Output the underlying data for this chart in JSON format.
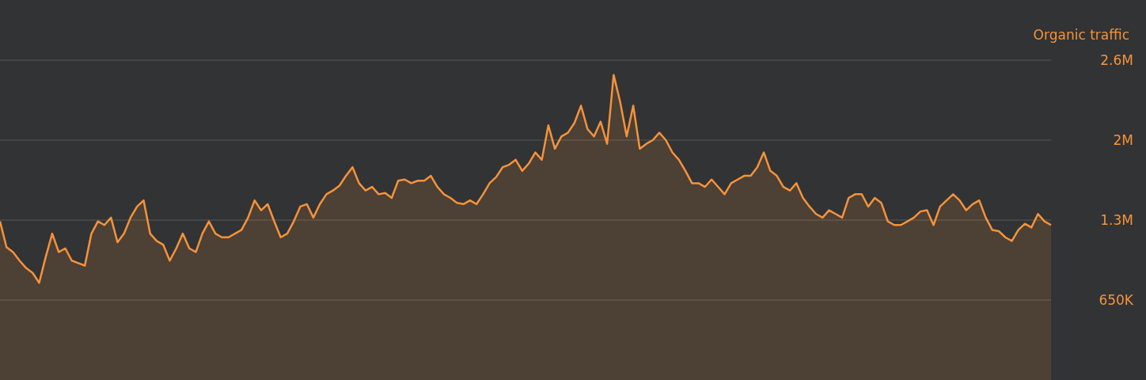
{
  "chart_data": {
    "type": "area",
    "ylabel": "Organic traffic",
    "categories": [
      null,
      null,
      null,
      null,
      null,
      null,
      null,
      null,
      null,
      null,
      null,
      null,
      null,
      null,
      null,
      null,
      null,
      null,
      null,
      null,
      null,
      null,
      null,
      null,
      null,
      null,
      null,
      null,
      null,
      null,
      null,
      null,
      null,
      null,
      null,
      null,
      null,
      null,
      null,
      null,
      null,
      null,
      null,
      null,
      null,
      null,
      null,
      null,
      null,
      null,
      null,
      null,
      null,
      null,
      null,
      null,
      null,
      null,
      null,
      null,
      null,
      null,
      null,
      null,
      null,
      null,
      null,
      null,
      null,
      null,
      null,
      null,
      null,
      null,
      null,
      null,
      null,
      null,
      null,
      null,
      null,
      null,
      null,
      null,
      null,
      null,
      null,
      null,
      null,
      null,
      null,
      null,
      null,
      null,
      null,
      null,
      null,
      null,
      null,
      null,
      null,
      null,
      null,
      null,
      null,
      null,
      null,
      null,
      null,
      null,
      null,
      null,
      null,
      null,
      null,
      null,
      null,
      null,
      null,
      null,
      null,
      null,
      null,
      null,
      null,
      null,
      null,
      null,
      null,
      null,
      null,
      null,
      null,
      null,
      null,
      null,
      null,
      null,
      null,
      null,
      null,
      null,
      null,
      null,
      null,
      null,
      null,
      null,
      null,
      null,
      null,
      null,
      null,
      null,
      null,
      null,
      null,
      null,
      null,
      null,
      null,
      null
    ],
    "series": [
      {
        "color": "#f5933a",
        "values": [
          1290000,
          1080000,
          1040000,
          970000,
          910000,
          870000,
          790000,
          1000000,
          1190000,
          1040000,
          1070000,
          970000,
          950000,
          930000,
          1190000,
          1290000,
          1260000,
          1320000,
          1120000,
          1190000,
          1320000,
          1410000,
          1460000,
          1190000,
          1130000,
          1100000,
          970000,
          1070000,
          1190000,
          1070000,
          1040000,
          1190000,
          1290000,
          1190000,
          1160000,
          1160000,
          1190000,
          1220000,
          1320000,
          1460000,
          1380000,
          1430000,
          1290000,
          1160000,
          1190000,
          1290000,
          1410000,
          1430000,
          1320000,
          1430000,
          1510000,
          1540000,
          1580000,
          1660000,
          1730000,
          1600000,
          1540000,
          1570000,
          1510000,
          1520000,
          1480000,
          1620000,
          1630000,
          1600000,
          1620000,
          1620000,
          1660000,
          1570000,
          1510000,
          1480000,
          1440000,
          1430000,
          1460000,
          1430000,
          1510000,
          1600000,
          1650000,
          1730000,
          1750000,
          1790000,
          1700000,
          1760000,
          1850000,
          1790000,
          2070000,
          1880000,
          1980000,
          2010000,
          2090000,
          2230000,
          2040000,
          1980000,
          2100000,
          1920000,
          2480000,
          2260000,
          1980000,
          2230000,
          1880000,
          1920000,
          1950000,
          2010000,
          1950000,
          1850000,
          1790000,
          1700000,
          1600000,
          1600000,
          1570000,
          1630000,
          1570000,
          1510000,
          1600000,
          1630000,
          1660000,
          1660000,
          1730000,
          1850000,
          1700000,
          1660000,
          1570000,
          1540000,
          1600000,
          1480000,
          1410000,
          1350000,
          1320000,
          1380000,
          1350000,
          1320000,
          1480000,
          1510000,
          1510000,
          1410000,
          1480000,
          1440000,
          1290000,
          1260000,
          1260000,
          1290000,
          1320000,
          1370000,
          1380000,
          1260000,
          1410000,
          1460000,
          1510000,
          1460000,
          1380000,
          1430000,
          1460000,
          1320000,
          1220000,
          1210000,
          1160000,
          1130000,
          1220000,
          1270000,
          1240000,
          1350000,
          1290000,
          1260000
        ]
      }
    ],
    "ylim": [
      0,
      2600000
    ],
    "yticks": [
      {
        "value": 650000,
        "label": "650K"
      },
      {
        "value": 1300000,
        "label": "1.3M"
      },
      {
        "value": 1950000,
        "label": "2M"
      },
      {
        "value": 2600000,
        "label": "2.6M"
      }
    ],
    "grid": "y",
    "tick_labels": "y"
  }
}
